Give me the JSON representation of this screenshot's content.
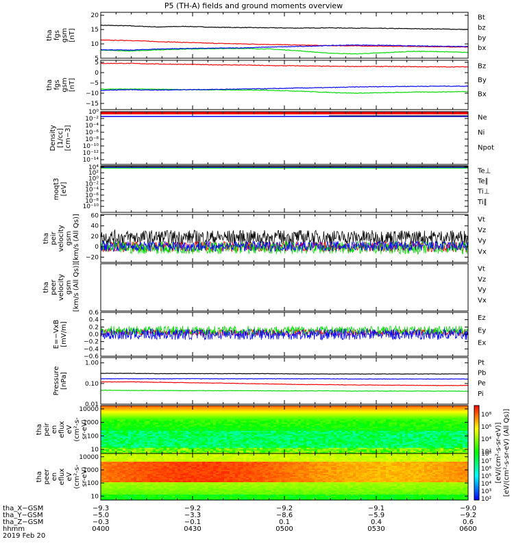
{
  "title": "P5 (TH-A) fields and ground moments overview",
  "colors": {
    "black": "#000000",
    "red": "#ff0000",
    "green": "#00dd00",
    "blue": "#0000ff"
  },
  "chart_data": [
    {
      "type": "line",
      "ylabel": [
        "tha",
        "fgs",
        "gsm",
        "[nT]"
      ],
      "ylim": [
        5,
        21
      ],
      "yticks": [
        {
          "v": 20,
          "l": "20"
        },
        {
          "v": 15,
          "l": "15"
        },
        {
          "v": 10,
          "l": "10"
        },
        {
          "v": 5,
          "l": "5"
        }
      ],
      "series": [
        {
          "name": "Bt",
          "color": "#000000",
          "values": [
            16.5,
            16.3,
            15.9,
            16.1,
            15.8,
            15.7,
            15.6,
            15.5,
            15.6,
            15.5,
            15.4,
            15.3,
            15.2,
            15.0
          ]
        },
        {
          "name": "bz",
          "color": "#ff0000",
          "values": [
            11.3,
            11.2,
            10.8,
            10.5,
            10.2,
            10.0,
            9.8,
            9.6,
            9.4,
            9.3,
            9.2,
            9.1,
            9.0,
            8.9
          ]
        },
        {
          "name": "by",
          "color": "#00dd00",
          "values": [
            7.8,
            7.5,
            7.9,
            8.2,
            8.3,
            8.4,
            8.2,
            7.6,
            6.8,
            6.5,
            6.9,
            7.4,
            7.3,
            7.0
          ]
        },
        {
          "name": "bx",
          "color": "#0000ff",
          "values": [
            8.0,
            7.8,
            8.2,
            8.4,
            8.5,
            8.6,
            8.9,
            9.1,
            9.4,
            9.6,
            9.5,
            9.3,
            9.2,
            9.1
          ]
        }
      ]
    },
    {
      "type": "line",
      "ylabel": [
        "tha",
        "fgs",
        "gsm",
        "[nT]"
      ],
      "ylim": [
        -18,
        6
      ],
      "yticks": [
        {
          "v": 5,
          "l": "5"
        },
        {
          "v": 0,
          "l": "0"
        },
        {
          "v": -5,
          "l": "−5"
        },
        {
          "v": -10,
          "l": "−10"
        },
        {
          "v": -15,
          "l": "−15"
        }
      ],
      "series": [
        {
          "name": "Bz",
          "color": "#ff0000",
          "values": [
            4.5,
            4.5,
            4.2,
            4.0,
            3.8,
            3.7,
            3.4,
            3.3,
            3.1,
            3.0,
            3.0,
            2.9,
            2.8,
            2.8
          ]
        },
        {
          "name": "By",
          "color": "#00dd00",
          "values": [
            -8.0,
            -8.0,
            -8.1,
            -8.3,
            -8.4,
            -8.5,
            -8.6,
            -9.0,
            -9.6,
            -10.0,
            -9.8,
            -9.5,
            -9.4,
            -9.2
          ]
        },
        {
          "name": "Bx",
          "color": "#0000ff",
          "values": [
            -8.6,
            -8.3,
            -8.5,
            -8.3,
            -8.2,
            -8.0,
            -7.8,
            -7.5,
            -7.3,
            -7.0,
            -6.8,
            -6.7,
            -6.6,
            -6.6
          ]
        }
      ]
    },
    {
      "type": "line",
      "ylabel": [
        "Density",
        "[1/cc]",
        "[cm−3]"
      ],
      "yticks": [
        {
          "v": 1,
          "l": "10⁰"
        },
        {
          "v": 0.87,
          "l": "10⁻²"
        },
        {
          "v": 0.74,
          "l": "10⁻⁴"
        },
        {
          "v": 0.61,
          "l": "10⁻⁶"
        },
        {
          "v": 0.48,
          "l": "10⁻⁸"
        },
        {
          "v": 0.35,
          "l": "10⁻¹⁰"
        },
        {
          "v": 0.22,
          "l": "10⁻¹²"
        },
        {
          "v": 0.09,
          "l": "10⁻¹⁴"
        }
      ],
      "series": [
        {
          "name": "Ne",
          "color": "#ff0000"
        },
        {
          "name": "Ni",
          "color": "#000000"
        },
        {
          "name": "Npot",
          "color": "#0000ff"
        }
      ]
    },
    {
      "type": "line",
      "ylabel": [
        "moqt3",
        "[eV]"
      ],
      "yticks": [
        {
          "v": 0.97,
          "l": "10⁴"
        },
        {
          "v": 0.85,
          "l": "10²"
        },
        {
          "v": 0.73,
          "l": "10⁰"
        },
        {
          "v": 0.61,
          "l": "10⁻²"
        },
        {
          "v": 0.49,
          "l": "10⁻⁴"
        },
        {
          "v": 0.37,
          "l": "10⁻⁶"
        },
        {
          "v": 0.25,
          "l": "10⁻⁸"
        },
        {
          "v": 0.13,
          "l": "10⁻¹⁰"
        }
      ],
      "series": [
        {
          "name": "Te⊥",
          "color": "#ff0000"
        },
        {
          "name": "Te∥",
          "color": "#000000"
        },
        {
          "name": "Ti⊥",
          "color": "#0000ff"
        },
        {
          "name": "Ti∥",
          "color": "#00dd00"
        }
      ]
    },
    {
      "type": "line",
      "ylabel": [
        "tha",
        "peir",
        "velocity",
        "gsm",
        "[km/s (All Qs)]"
      ],
      "ylim": [
        -30,
        62
      ],
      "yticks": [
        {
          "v": 60,
          "l": "60"
        },
        {
          "v": 40,
          "l": "40"
        },
        {
          "v": 20,
          "l": "20"
        },
        {
          "v": 0,
          "l": "0"
        },
        {
          "v": -20,
          "l": "−20"
        }
      ],
      "series": [
        {
          "name": "Vt",
          "color": "#000000",
          "mean": 18,
          "amp": 14
        },
        {
          "name": "Vz",
          "color": "#ff0000",
          "mean": 0,
          "amp": 10
        },
        {
          "name": "Vy",
          "color": "#00dd00",
          "mean": -2,
          "amp": 12
        },
        {
          "name": "Vx",
          "color": "#0000ff",
          "mean": 1,
          "amp": 10
        }
      ]
    },
    {
      "type": "line",
      "ylabel": [
        "tha",
        "peer",
        "velocity",
        "gsm",
        "[km/s (All Qs)]"
      ],
      "yticks": [],
      "series": [
        {
          "name": "Vt",
          "color": "#000000"
        },
        {
          "name": "Vz",
          "color": "#ff0000"
        },
        {
          "name": "Vy",
          "color": "#00dd00"
        },
        {
          "name": "Vx",
          "color": "#0000ff"
        }
      ]
    },
    {
      "type": "line",
      "ylabel": [
        "E=−VxB",
        "[mV/m]"
      ],
      "ylim": [
        -0.6,
        0.6
      ],
      "yticks": [
        {
          "v": 0.6,
          "l": "0.6"
        },
        {
          "v": 0.4,
          "l": "0.4"
        },
        {
          "v": 0.2,
          "l": "0.2"
        },
        {
          "v": 0,
          "l": "0.0"
        },
        {
          "v": -0.2,
          "l": "−0.2"
        },
        {
          "v": -0.4,
          "l": "−0.4"
        },
        {
          "v": -0.6,
          "l": "−0.6"
        }
      ],
      "series": [
        {
          "name": "Ez",
          "color": "#ff0000",
          "mean": 0.05,
          "amp": 0.09
        },
        {
          "name": "Ey",
          "color": "#00dd00",
          "mean": 0.1,
          "amp": 0.13
        },
        {
          "name": "Ex",
          "color": "#0000ff",
          "mean": 0.0,
          "amp": 0.15
        }
      ]
    },
    {
      "type": "line",
      "scale": "log",
      "ylabel": [
        "Pressure",
        "[nPa]"
      ],
      "ylim": [
        0.01,
        1.8
      ],
      "yticks": [
        {
          "v": 1,
          "l": "1.00"
        },
        {
          "v": 0.1,
          "l": "0.10"
        },
        {
          "v": 0.01,
          "l": "0.01"
        }
      ],
      "series": [
        {
          "name": "Pt",
          "color": "#000000",
          "values": [
            0.31,
            0.31,
            0.3,
            0.3,
            0.3,
            0.3,
            0.3,
            0.29,
            0.29,
            0.29,
            0.29,
            0.29,
            0.29,
            0.29
          ]
        },
        {
          "name": "Pb",
          "color": "#ff0000",
          "values": [
            0.12,
            0.12,
            0.115,
            0.11,
            0.105,
            0.1,
            0.095,
            0.09,
            0.088,
            0.085,
            0.083,
            0.082,
            0.08,
            0.08
          ]
        },
        {
          "name": "Pe",
          "color": "#00dd00",
          "values": [
            0.047,
            0.046,
            0.046,
            0.045,
            0.045,
            0.045,
            0.044,
            0.044,
            0.044,
            0.043,
            0.043,
            0.043,
            0.043,
            0.042
          ]
        },
        {
          "name": "Pi",
          "color": "#0000ff",
          "values": [
            0.17,
            0.17,
            0.17,
            0.17,
            0.17,
            0.17,
            0.17,
            0.17,
            0.17,
            0.165,
            0.165,
            0.165,
            0.165,
            0.165
          ]
        }
      ]
    },
    {
      "type": "heatmap",
      "ylabel": [
        "tha",
        "peir",
        "en",
        "eflux",
        "eV",
        "(cm²-s-",
        "sr-eV)"
      ],
      "yticks": [
        {
          "v": 10000,
          "l": "10000"
        },
        {
          "v": 1000,
          "l": "1000"
        },
        {
          "v": 100,
          "l": "100"
        },
        {
          "v": 10,
          "l": "10"
        }
      ]
    },
    {
      "type": "heatmap",
      "ylabel": [
        "tha",
        "peer",
        "en",
        "eflux",
        "eV",
        "(cm²-s-",
        "sr-eV)"
      ],
      "yticks": [
        {
          "v": 10000,
          "l": "10000"
        },
        {
          "v": 1000,
          "l": "1000"
        },
        {
          "v": 100,
          "l": "100"
        },
        {
          "v": 10,
          "l": "10"
        }
      ]
    }
  ],
  "colorbar": {
    "label": "[eV/(cm²-s-sr-eV)]",
    "overlay_label": "[eV/(cm²-s-sr-eV) (All Qs)]",
    "ticks_top": [
      "10⁸",
      "10⁶",
      "10⁴",
      "10²"
    ],
    "ticks_bottom": [
      "10⁸",
      "10⁷",
      "10⁶",
      "10⁵",
      "10⁴",
      "10³",
      "10²"
    ]
  },
  "xaxis": {
    "row_labels": [
      "tha_X−GSM",
      "tha_Y−GSM",
      "tha_Z−GSM",
      "hhmm",
      "2019 Feb 20"
    ],
    "columns": [
      {
        "x": "−9.3",
        "y": "−5.0",
        "z": "−0.3",
        "t": "0400"
      },
      {
        "x": "−9.2",
        "y": "−3.3",
        "z": "−0.1",
        "t": "0430"
      },
      {
        "x": "−9.2",
        "y": "−8.6",
        "z": "0.1",
        "t": "0500"
      },
      {
        "x": "−9.1",
        "y": "−5.9",
        "z": "0.4",
        "t": "0530"
      },
      {
        "x": "−9.0",
        "y": "−9.2",
        "z": "0.6",
        "t": "0600"
      }
    ]
  }
}
